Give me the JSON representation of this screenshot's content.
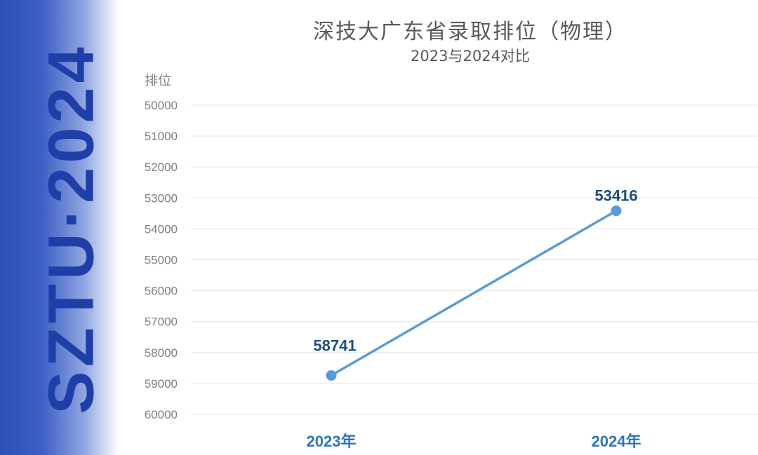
{
  "side_text": "SZTU·2024",
  "chart_data": {
    "type": "line",
    "title": "深技大广东省录取排位（物理）",
    "subtitle": "2023与2024对比",
    "ylabel": "排位",
    "xlabel": "",
    "categories": [
      "2023年",
      "2024年"
    ],
    "series": [
      {
        "name": "排位",
        "values": [
          58741,
          53416
        ]
      }
    ],
    "y_ticks": [
      50000,
      51000,
      52000,
      53000,
      54000,
      55000,
      56000,
      57000,
      58000,
      59000,
      60000
    ],
    "ylim": [
      50000,
      60000
    ],
    "y_inverted": true,
    "grid": true,
    "colors": {
      "line": "#5b9bd5",
      "label": "#1f4e79",
      "category": "#2e75b6",
      "tick": "#7f7f7f",
      "grid": "#e6e6e6"
    }
  }
}
